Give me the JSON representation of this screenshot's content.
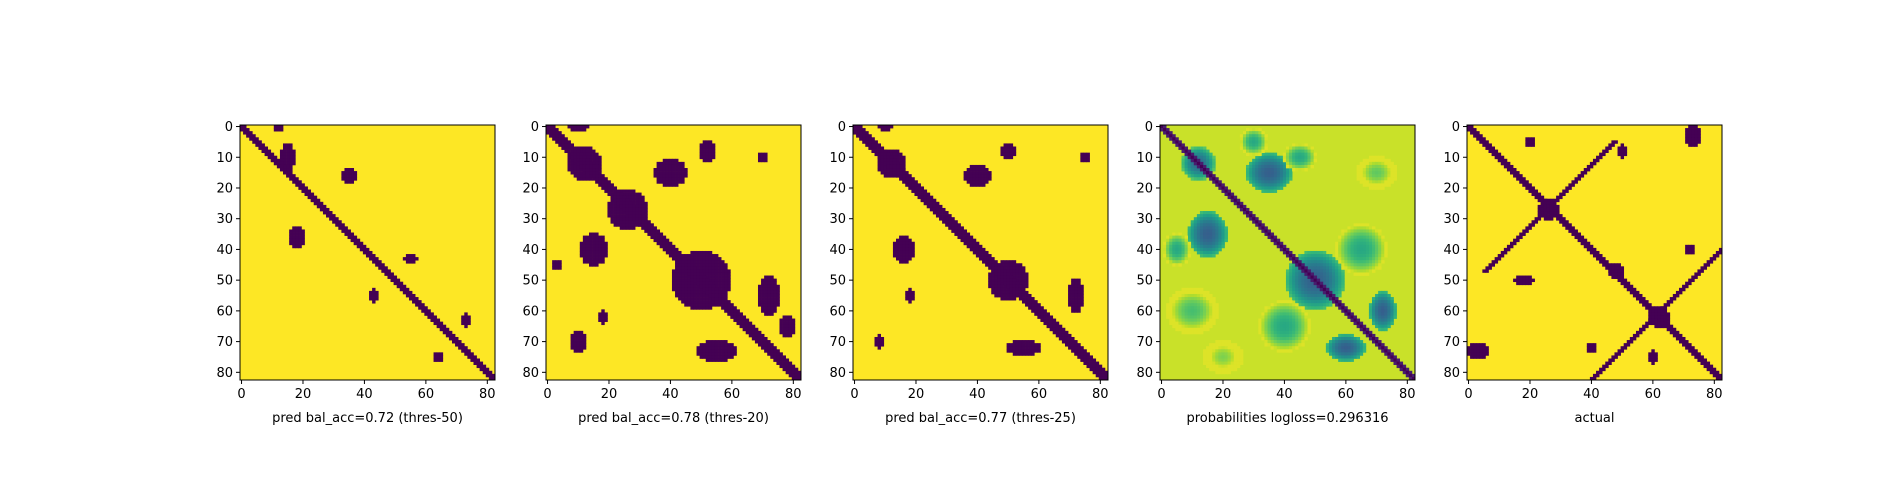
{
  "figure": {
    "background": "#ffffff",
    "colormap": "viridis",
    "colors": {
      "low": "#440154",
      "high": "#fde725"
    }
  },
  "chart_data": [
    {
      "type": "heatmap",
      "title": "",
      "xlabel": "pred bal_acc=0.72 (thres-50)",
      "ylabel": "",
      "size": 83,
      "xlim": [
        0,
        82
      ],
      "ylim": [
        82,
        0
      ],
      "xticks": [
        "0",
        "20",
        "40",
        "60",
        "80"
      ],
      "yticks": [
        "0",
        "10",
        "20",
        "30",
        "40",
        "50",
        "60",
        "70",
        "80"
      ],
      "value_range": [
        0,
        1
      ],
      "content": "binary predicted contact map",
      "diag_width": 3,
      "blobs": [
        {
          "cx": 15,
          "cy": 10,
          "rx": 2,
          "ry": 4,
          "v": 0
        },
        {
          "cx": 35,
          "cy": 16,
          "rx": 2,
          "ry": 2,
          "v": 0
        },
        {
          "cx": 18,
          "cy": 36,
          "rx": 2,
          "ry": 3,
          "v": 0
        },
        {
          "cx": 12,
          "cy": 0,
          "rx": 1,
          "ry": 1,
          "v": 0
        },
        {
          "cx": 55,
          "cy": 43,
          "rx": 2,
          "ry": 1,
          "v": 0
        },
        {
          "cx": 43,
          "cy": 55,
          "rx": 1,
          "ry": 2,
          "v": 0
        },
        {
          "cx": 73,
          "cy": 63,
          "rx": 1,
          "ry": 2,
          "v": 0
        },
        {
          "cx": 64,
          "cy": 75,
          "rx": 1,
          "ry": 1,
          "v": 0
        }
      ]
    },
    {
      "type": "heatmap",
      "title": "",
      "xlabel": "pred bal_acc=0.78 (thres-20)",
      "ylabel": "",
      "size": 83,
      "xlim": [
        0,
        82
      ],
      "ylim": [
        82,
        0
      ],
      "xticks": [
        "0",
        "20",
        "40",
        "60",
        "80"
      ],
      "yticks": [
        "0",
        "10",
        "20",
        "30",
        "40",
        "50",
        "60",
        "70",
        "80"
      ],
      "value_range": [
        0,
        1
      ],
      "content": "binary predicted contact map",
      "diag_width": 5,
      "blobs": [
        {
          "cx": 12,
          "cy": 12,
          "rx": 5,
          "ry": 5,
          "v": 0
        },
        {
          "cx": 26,
          "cy": 27,
          "rx": 6,
          "ry": 6,
          "v": 0
        },
        {
          "cx": 40,
          "cy": 15,
          "rx": 5,
          "ry": 4,
          "v": 0
        },
        {
          "cx": 15,
          "cy": 40,
          "rx": 4,
          "ry": 5,
          "v": 0
        },
        {
          "cx": 50,
          "cy": 50,
          "rx": 9,
          "ry": 9,
          "v": 0
        },
        {
          "cx": 52,
          "cy": 8,
          "rx": 2,
          "ry": 3,
          "v": 0
        },
        {
          "cx": 70,
          "cy": 10,
          "rx": 1,
          "ry": 1,
          "v": 0
        },
        {
          "cx": 72,
          "cy": 55,
          "rx": 3,
          "ry": 6,
          "v": 0
        },
        {
          "cx": 55,
          "cy": 73,
          "rx": 6,
          "ry": 3,
          "v": 0
        },
        {
          "cx": 10,
          "cy": 70,
          "rx": 2,
          "ry": 3,
          "v": 0
        },
        {
          "cx": 18,
          "cy": 62,
          "rx": 1,
          "ry": 2,
          "v": 0
        },
        {
          "cx": 3,
          "cy": 45,
          "rx": 1,
          "ry": 1,
          "v": 0
        },
        {
          "cx": 10,
          "cy": 0,
          "rx": 3,
          "ry": 1,
          "v": 0
        },
        {
          "cx": 78,
          "cy": 65,
          "rx": 2,
          "ry": 3,
          "v": 0
        }
      ]
    },
    {
      "type": "heatmap",
      "title": "",
      "xlabel": "pred bal_acc=0.77 (thres-25)",
      "ylabel": "",
      "size": 83,
      "xlim": [
        0,
        82
      ],
      "ylim": [
        82,
        0
      ],
      "xticks": [
        "0",
        "20",
        "40",
        "60",
        "80"
      ],
      "yticks": [
        "0",
        "10",
        "20",
        "30",
        "40",
        "50",
        "60",
        "70",
        "80"
      ],
      "value_range": [
        0,
        1
      ],
      "content": "binary predicted contact map",
      "diag_width": 4,
      "blobs": [
        {
          "cx": 12,
          "cy": 12,
          "rx": 4,
          "ry": 4,
          "v": 0
        },
        {
          "cx": 40,
          "cy": 16,
          "rx": 4,
          "ry": 3,
          "v": 0
        },
        {
          "cx": 16,
          "cy": 40,
          "rx": 3,
          "ry": 4,
          "v": 0
        },
        {
          "cx": 50,
          "cy": 50,
          "rx": 6,
          "ry": 6,
          "v": 0
        },
        {
          "cx": 50,
          "cy": 8,
          "rx": 2,
          "ry": 2,
          "v": 0
        },
        {
          "cx": 72,
          "cy": 55,
          "rx": 2,
          "ry": 5,
          "v": 0
        },
        {
          "cx": 55,
          "cy": 72,
          "rx": 5,
          "ry": 2,
          "v": 0
        },
        {
          "cx": 8,
          "cy": 70,
          "rx": 1,
          "ry": 2,
          "v": 0
        },
        {
          "cx": 18,
          "cy": 55,
          "rx": 1,
          "ry": 2,
          "v": 0
        },
        {
          "cx": 10,
          "cy": 0,
          "rx": 2,
          "ry": 1,
          "v": 0
        },
        {
          "cx": 75,
          "cy": 10,
          "rx": 1,
          "ry": 1,
          "v": 0
        }
      ]
    },
    {
      "type": "heatmap",
      "title": "",
      "xlabel": "probabilities logloss=0.296316",
      "ylabel": "",
      "size": 83,
      "xlim": [
        0,
        82
      ],
      "ylim": [
        82,
        0
      ],
      "xticks": [
        "0",
        "20",
        "40",
        "60",
        "80"
      ],
      "yticks": [
        "0",
        "10",
        "20",
        "30",
        "40",
        "50",
        "60",
        "70",
        "80"
      ],
      "value_range": [
        0,
        1
      ],
      "content": "continuous contact probabilities",
      "diag_width": 3,
      "blobs": [
        {
          "cx": 12,
          "cy": 12,
          "rx": 5,
          "ry": 5,
          "v": 0.35
        },
        {
          "cx": 35,
          "cy": 15,
          "rx": 7,
          "ry": 6,
          "v": 0.3
        },
        {
          "cx": 15,
          "cy": 35,
          "rx": 6,
          "ry": 7,
          "v": 0.3
        },
        {
          "cx": 50,
          "cy": 50,
          "rx": 9,
          "ry": 9,
          "v": 0.3
        },
        {
          "cx": 45,
          "cy": 10,
          "rx": 5,
          "ry": 4,
          "v": 0.6
        },
        {
          "cx": 70,
          "cy": 15,
          "rx": 6,
          "ry": 5,
          "v": 0.75
        },
        {
          "cx": 65,
          "cy": 40,
          "rx": 8,
          "ry": 8,
          "v": 0.6
        },
        {
          "cx": 40,
          "cy": 65,
          "rx": 8,
          "ry": 8,
          "v": 0.6
        },
        {
          "cx": 10,
          "cy": 60,
          "rx": 8,
          "ry": 7,
          "v": 0.7
        },
        {
          "cx": 30,
          "cy": 5,
          "rx": 4,
          "ry": 4,
          "v": 0.6
        },
        {
          "cx": 72,
          "cy": 60,
          "rx": 4,
          "ry": 6,
          "v": 0.3
        },
        {
          "cx": 60,
          "cy": 72,
          "rx": 6,
          "ry": 4,
          "v": 0.3
        },
        {
          "cx": 20,
          "cy": 75,
          "rx": 6,
          "ry": 5,
          "v": 0.8
        },
        {
          "cx": 5,
          "cy": 40,
          "rx": 4,
          "ry": 5,
          "v": 0.6
        }
      ]
    },
    {
      "type": "heatmap",
      "title": "",
      "xlabel": "actual",
      "ylabel": "",
      "size": 83,
      "xlim": [
        0,
        82
      ],
      "ylim": [
        82,
        0
      ],
      "xticks": [
        "0",
        "20",
        "40",
        "60",
        "80"
      ],
      "yticks": [
        "0",
        "10",
        "20",
        "30",
        "40",
        "50",
        "60",
        "70",
        "80"
      ],
      "value_range": [
        0,
        1
      ],
      "content": "binary true contact map",
      "diag_width": 3,
      "anti_diagonals": [
        [
          5,
          47
        ],
        [
          40,
          82
        ]
      ],
      "blobs": [
        {
          "cx": 26,
          "cy": 27,
          "rx": 3,
          "ry": 3,
          "v": 0
        },
        {
          "cx": 62,
          "cy": 62,
          "rx": 3,
          "ry": 3,
          "v": 0
        },
        {
          "cx": 48,
          "cy": 47,
          "rx": 2,
          "ry": 2,
          "v": 0
        },
        {
          "cx": 73,
          "cy": 3,
          "rx": 2,
          "ry": 3,
          "v": 0
        },
        {
          "cx": 3,
          "cy": 73,
          "rx": 3,
          "ry": 2,
          "v": 0
        },
        {
          "cx": 50,
          "cy": 8,
          "rx": 1,
          "ry": 2,
          "v": 0
        },
        {
          "cx": 18,
          "cy": 50,
          "rx": 3,
          "ry": 1,
          "v": 0
        },
        {
          "cx": 72,
          "cy": 40,
          "rx": 1,
          "ry": 1,
          "v": 0
        },
        {
          "cx": 40,
          "cy": 72,
          "rx": 1,
          "ry": 1,
          "v": 0
        },
        {
          "cx": 60,
          "cy": 75,
          "rx": 1,
          "ry": 2,
          "v": 0
        },
        {
          "cx": 20,
          "cy": 5,
          "rx": 1,
          "ry": 1,
          "v": 0
        }
      ]
    }
  ]
}
